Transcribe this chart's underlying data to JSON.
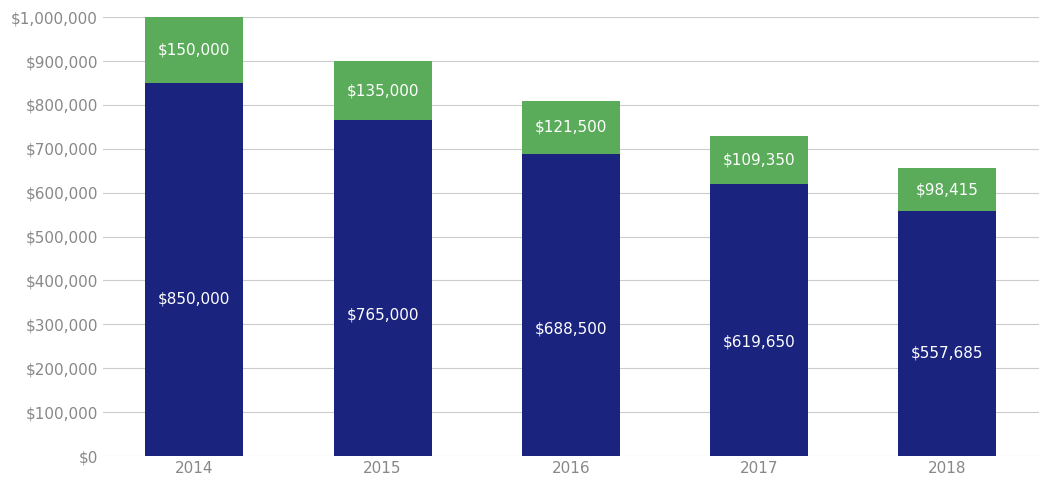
{
  "years": [
    "2014",
    "2015",
    "2016",
    "2017",
    "2018"
  ],
  "blue_values": [
    850000,
    765000,
    688500,
    619650,
    557685
  ],
  "green_values": [
    150000,
    135000,
    121500,
    109350,
    98415
  ],
  "blue_labels": [
    "$850,000",
    "$765,000",
    "$688,500",
    "$619,650",
    "$557,685"
  ],
  "green_labels": [
    "$150,000",
    "$135,000",
    "$121,500",
    "$109,350",
    "$98,415"
  ],
  "blue_color": "#1a237e",
  "green_color": "#5aab5a",
  "background_color": "#ffffff",
  "bar_width": 0.52,
  "ylim": [
    0,
    1000000
  ],
  "ytick_step": 100000,
  "text_color": "#ffffff",
  "axis_label_color": "#888888",
  "axis_bg_color": "#ffffff",
  "grid_color": "#cccccc",
  "label_fontsize": 11,
  "tick_fontsize": 11
}
